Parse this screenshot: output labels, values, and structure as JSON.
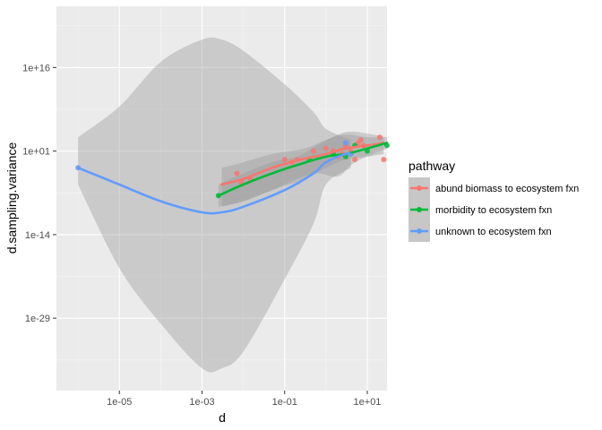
{
  "chart_data": {
    "type": "scatter",
    "title": "",
    "xlabel": "d",
    "ylabel": "d.sampling.variance",
    "x_scale": "log10",
    "y_scale": "log10",
    "xlim": [
      3e-07,
      30
    ],
    "ylim": [
      1e-42,
      1e+27
    ],
    "x_ticks": [
      {
        "value": 1e-05,
        "label": "1e-05"
      },
      {
        "value": 0.001,
        "label": "1e-03"
      },
      {
        "value": 0.1,
        "label": "1e-01"
      },
      {
        "value": 10,
        "label": "1e+01"
      }
    ],
    "y_ticks": [
      {
        "value": 1e-29,
        "label": "1e-29"
      },
      {
        "value": 1e-14,
        "label": "1e-14"
      },
      {
        "value": 10,
        "label": "1e+01"
      },
      {
        "value": 1e+16,
        "label": "1e+16"
      }
    ],
    "grid": true,
    "background": "#EBEBEB",
    "band_color": "#999999",
    "legend": {
      "title": "pathway",
      "position": "right"
    },
    "series": [
      {
        "name": "abund biomass to ecosystem fxn",
        "color": "#F8766D",
        "points": [
          {
            "x": 0.007,
            "y": 0.001
          },
          {
            "x": 0.009,
            "y": 3e-05
          },
          {
            "x": 0.015,
            "y": 0.0001
          },
          {
            "x": 0.1,
            "y": 0.3
          },
          {
            "x": 0.15,
            "y": 0.1
          },
          {
            "x": 0.2,
            "y": 0.3
          },
          {
            "x": 0.5,
            "y": 10
          },
          {
            "x": 1,
            "y": 30
          },
          {
            "x": 1.5,
            "y": 10
          },
          {
            "x": 2,
            "y": 1
          },
          {
            "x": 2.5,
            "y": 3
          },
          {
            "x": 3,
            "y": 100
          },
          {
            "x": 4,
            "y": 10
          },
          {
            "x": 5,
            "y": 0.3
          },
          {
            "x": 6,
            "y": 300
          },
          {
            "x": 7,
            "y": 1000
          },
          {
            "x": 8,
            "y": 100
          },
          {
            "x": 20,
            "y": 3000
          },
          {
            "x": 25,
            "y": 0.3
          }
        ],
        "fit": [
          {
            "x": 0.003,
            "y": 1e-05
          },
          {
            "x": 0.01,
            "y": 0.0001
          },
          {
            "x": 0.05,
            "y": 0.01
          },
          {
            "x": 0.2,
            "y": 0.2
          },
          {
            "x": 1,
            "y": 3
          },
          {
            "x": 3,
            "y": 30
          },
          {
            "x": 10,
            "y": 100
          },
          {
            "x": 25,
            "y": 300
          }
        ],
        "band_upper": [
          {
            "x": 0.003,
            "y": 0.01
          },
          {
            "x": 0.01,
            "y": 0.1
          },
          {
            "x": 0.05,
            "y": 3
          },
          {
            "x": 0.3,
            "y": 30
          },
          {
            "x": 1,
            "y": 1000.0
          },
          {
            "x": 3,
            "y": 10000.0
          },
          {
            "x": 10,
            "y": 3000.0
          },
          {
            "x": 25,
            "y": 3000.0
          }
        ],
        "band_lower": [
          {
            "x": 25,
            "y": 3
          },
          {
            "x": 10,
            "y": 1
          },
          {
            "x": 3,
            "y": 0.3
          },
          {
            "x": 1,
            "y": 0.01
          },
          {
            "x": 0.3,
            "y": 0.0001
          },
          {
            "x": 0.05,
            "y": 1e-06
          },
          {
            "x": 0.01,
            "y": 1e-08
          },
          {
            "x": 0.003,
            "y": 1e-09
          }
        ]
      },
      {
        "name": "morbidity to ecosystem fxn",
        "color": "#00BA38",
        "points": [
          {
            "x": 0.0025,
            "y": 1e-07
          },
          {
            "x": 0.4,
            "y": 0.3
          },
          {
            "x": 1.5,
            "y": 3
          },
          {
            "x": 3,
            "y": 1
          },
          {
            "x": 5,
            "y": 100
          },
          {
            "x": 10,
            "y": 10
          },
          {
            "x": 30,
            "y": 100
          }
        ],
        "fit": [
          {
            "x": 0.0025,
            "y": 1e-07
          },
          {
            "x": 0.01,
            "y": 1e-05
          },
          {
            "x": 0.05,
            "y": 0.001
          },
          {
            "x": 0.2,
            "y": 0.03
          },
          {
            "x": 1,
            "y": 1
          },
          {
            "x": 3,
            "y": 3
          },
          {
            "x": 10,
            "y": 30
          },
          {
            "x": 30,
            "y": 300
          }
        ],
        "band_upper": [
          {
            "x": 0.0025,
            "y": 1e-05
          },
          {
            "x": 0.01,
            "y": 0.001
          },
          {
            "x": 0.05,
            "y": 0.1
          },
          {
            "x": 0.2,
            "y": 1
          },
          {
            "x": 0.6,
            "y": 100
          },
          {
            "x": 2,
            "y": 10000.0
          },
          {
            "x": 5,
            "y": 30000.0
          },
          {
            "x": 30,
            "y": 3000.0
          }
        ],
        "band_lower": [
          {
            "x": 30,
            "y": 30
          },
          {
            "x": 5,
            "y": 0.1
          },
          {
            "x": 2,
            "y": 0.0003
          },
          {
            "x": 0.6,
            "y": 0.001
          },
          {
            "x": 0.2,
            "y": 0.0001
          },
          {
            "x": 0.05,
            "y": 1e-06
          },
          {
            "x": 0.01,
            "y": 1e-08
          },
          {
            "x": 0.0025,
            "y": 1e-09
          }
        ]
      },
      {
        "name": "unknown to ecosystem fxn",
        "color": "#619CFF",
        "points": [
          {
            "x": 1e-06,
            "y": 0.01
          },
          {
            "x": 3,
            "y": 300
          },
          {
            "x": 4,
            "y": 3
          }
        ],
        "fit": [
          {
            "x": 1e-06,
            "y": 0.01
          },
          {
            "x": 1e-05,
            "y": 1e-05
          },
          {
            "x": 0.0001,
            "y": 1e-08
          },
          {
            "x": 0.001,
            "y": 1e-10
          },
          {
            "x": 0.003,
            "y": 1e-10
          },
          {
            "x": 0.01,
            "y": 1e-09
          },
          {
            "x": 0.1,
            "y": 1e-06
          },
          {
            "x": 0.5,
            "y": 0.001
          },
          {
            "x": 1,
            "y": 0.1
          },
          {
            "x": 3,
            "y": 3
          },
          {
            "x": 4,
            "y": 3
          }
        ],
        "band_upper": [
          {
            "x": 1e-06,
            "y": 3000.0
          },
          {
            "x": 1e-05,
            "y": 1000000000.0
          },
          {
            "x": 0.0001,
            "y": 1e+17
          },
          {
            "x": 0.001,
            "y": 1e+21
          },
          {
            "x": 0.003,
            "y": 1e+21
          },
          {
            "x": 0.01,
            "y": 1e+19
          },
          {
            "x": 0.1,
            "y": 10000000000000.0
          },
          {
            "x": 0.5,
            "y": 100000000.0
          },
          {
            "x": 1,
            "y": 100000.0
          },
          {
            "x": 4,
            "y": 1000.0
          }
        ],
        "band_lower": [
          {
            "x": 4,
            "y": 0.01
          },
          {
            "x": 1,
            "y": 1e-05
          },
          {
            "x": 0.5,
            "y": 1e-12
          },
          {
            "x": 0.1,
            "y": 1e-22
          },
          {
            "x": 0.01,
            "y": 1e-35
          },
          {
            "x": 0.003,
            "y": 1e-38
          },
          {
            "x": 0.001,
            "y": 1e-38
          },
          {
            "x": 0.0001,
            "y": 1e-30
          },
          {
            "x": 1e-05,
            "y": 1e-20
          },
          {
            "x": 1e-06,
            "y": 1e-05
          }
        ]
      }
    ]
  }
}
